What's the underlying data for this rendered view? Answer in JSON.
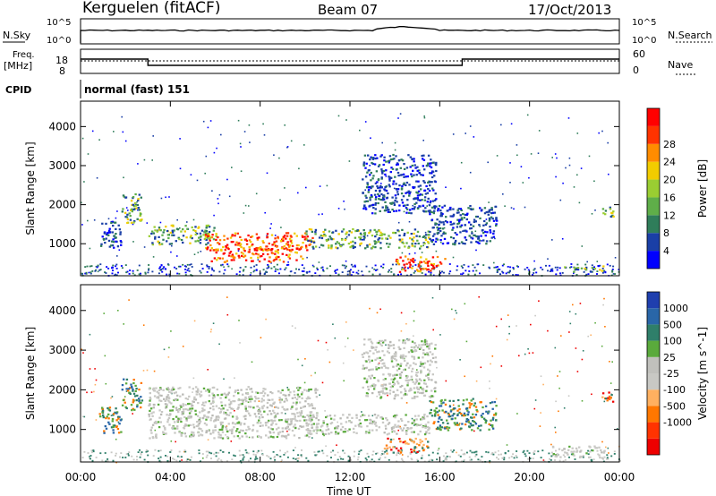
{
  "header": {
    "station": "Kerguelen (fitACF)",
    "beam": "Beam 07",
    "date": "17/Oct/2013"
  },
  "top_panels": {
    "nsky_label": "N.Sky",
    "nsky_ticks": [
      "10^5",
      "10^0"
    ],
    "nsearch_label": "N.Search",
    "nsearch_ticks": [
      "10^5",
      "10^0"
    ],
    "freq_label_line1": "Freq.",
    "freq_label_line2": "[MHz]",
    "freq_ticks": [
      "18",
      "8"
    ],
    "nave_label": "Nave",
    "nave_ticks": [
      "60",
      "0"
    ],
    "cpid_label": "CPID",
    "cpid_text": "normal (fast) 151"
  },
  "colors": {
    "power_scale": [
      "#0000ff",
      "#1a3fa6",
      "#2f7d5a",
      "#5fae49",
      "#9acd32",
      "#f2cc00",
      "#ff8c00",
      "#ff3300",
      "#ff0000"
    ],
    "velocity_scale": [
      "#1f3fae",
      "#2966a8",
      "#2f7f6a",
      "#5aaa3c",
      "#c0c0bc",
      "#c8c8c4",
      "#ffb060",
      "#ff7700",
      "#ff3300",
      "#ee0000"
    ],
    "power_main": [
      "#1a3fa6",
      "#2f7d5a",
      "#5fae49",
      "#9acd32",
      "#ff8c00",
      "#ff3300"
    ],
    "velocity_main": [
      "#c8c8c4",
      "#2f7f6a",
      "#ff7700",
      "#5aaa3c",
      "#ffb060",
      "#ee0000"
    ]
  },
  "chart_data": [
    {
      "type": "heatmap",
      "title": "",
      "xlabel": "",
      "ylabel": "Slant Range [km]",
      "x_ticks": [
        "00:00",
        "04:00",
        "08:00",
        "12:00",
        "16:00",
        "20:00",
        "00:00"
      ],
      "y_ticks": [
        "1000",
        "2000",
        "3000",
        "4000"
      ],
      "y_tick_values": [
        1000,
        2000,
        3000,
        4000
      ],
      "ylim": [
        180,
        4650
      ],
      "xlim_hours": [
        0,
        24
      ],
      "colorbar_label": "Power [dB]",
      "colorbar_ticks": [
        "4",
        "8",
        "12",
        "16",
        "20",
        "24",
        "28"
      ],
      "regions": [
        {
          "t": [
            0.8,
            1.8
          ],
          "r": [
            900,
            1600
          ],
          "level": "low"
        },
        {
          "t": [
            1.8,
            2.7
          ],
          "r": [
            1500,
            2300
          ],
          "level": "mid"
        },
        {
          "t": [
            3.0,
            6.0
          ],
          "r": [
            1000,
            1500
          ],
          "level": "mid"
        },
        {
          "t": [
            5.5,
            10.3
          ],
          "r": [
            850,
            1300
          ],
          "level": "high"
        },
        {
          "t": [
            5.8,
            10.0
          ],
          "r": [
            550,
            900
          ],
          "level": "high"
        },
        {
          "t": [
            10.0,
            15.5
          ],
          "r": [
            900,
            1400
          ],
          "level": "mid"
        },
        {
          "t": [
            14.0,
            16.2
          ],
          "r": [
            300,
            700
          ],
          "level": "high"
        },
        {
          "t": [
            12.5,
            15.8
          ],
          "r": [
            1800,
            3300
          ],
          "level": "low"
        },
        {
          "t": [
            15.5,
            18.5
          ],
          "r": [
            1000,
            2000
          ],
          "level": "low"
        },
        {
          "t": [
            21.5,
            23.3
          ],
          "r": [
            300,
            450
          ],
          "level": "mid"
        },
        {
          "t": [
            23.2,
            23.8
          ],
          "r": [
            1700,
            2000
          ],
          "level": "mid"
        }
      ]
    },
    {
      "type": "heatmap",
      "title": "",
      "xlabel": "Time UT",
      "ylabel": "Slant Range [km]",
      "x_ticks": [
        "00:00",
        "04:00",
        "08:00",
        "12:00",
        "16:00",
        "20:00",
        "00:00"
      ],
      "y_ticks": [
        "1000",
        "2000",
        "3000",
        "4000"
      ],
      "y_tick_values": [
        1000,
        2000,
        3000,
        4000
      ],
      "ylim": [
        180,
        4650
      ],
      "xlim_hours": [
        0,
        24
      ],
      "colorbar_label": "Velocity [m s^-1]",
      "colorbar_ticks": [
        "1000",
        "500",
        "100",
        "25",
        "-25",
        "-100",
        "-500",
        "-1000"
      ],
      "regions": [
        {
          "t": [
            0.8,
            1.8
          ],
          "r": [
            900,
            1600
          ],
          "level": "pos"
        },
        {
          "t": [
            1.8,
            2.7
          ],
          "r": [
            1500,
            2300
          ],
          "level": "pos"
        },
        {
          "t": [
            3.0,
            10.5
          ],
          "r": [
            800,
            2100
          ],
          "level": "zero"
        },
        {
          "t": [
            10.0,
            15.5
          ],
          "r": [
            900,
            1400
          ],
          "level": "zero"
        },
        {
          "t": [
            12.5,
            15.8
          ],
          "r": [
            1800,
            3300
          ],
          "level": "zero"
        },
        {
          "t": [
            13.5,
            15.5
          ],
          "r": [
            400,
            800
          ],
          "level": "neg"
        },
        {
          "t": [
            15.5,
            18.5
          ],
          "r": [
            1000,
            1800
          ],
          "level": "pos"
        },
        {
          "t": [
            21.0,
            23.3
          ],
          "r": [
            300,
            600
          ],
          "level": "zero"
        },
        {
          "t": [
            23.2,
            23.8
          ],
          "r": [
            1700,
            2000
          ],
          "level": "neg"
        }
      ]
    }
  ]
}
